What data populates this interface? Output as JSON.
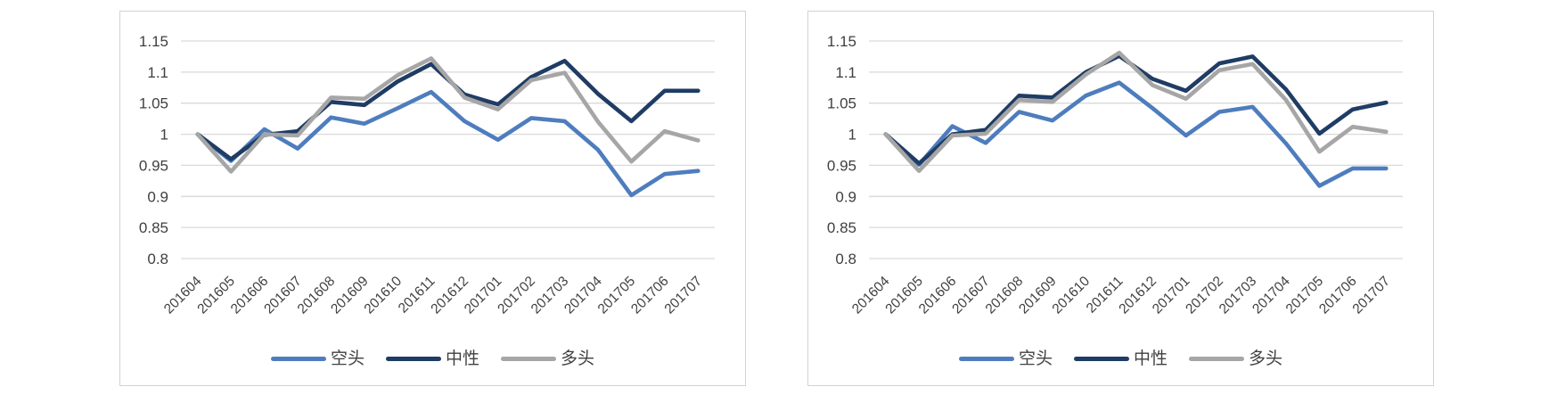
{
  "style": {
    "gridline_color": "#d9d9d9",
    "axis_label_color": "#404040",
    "panel_border_color": "#d2d2d7",
    "series_colors": {
      "short": "#4e7dbe",
      "neutral": "#1f3c64",
      "long": "#a6a6a6"
    }
  },
  "chart_data": [
    {
      "type": "line",
      "title": "",
      "xlabel": "",
      "ylabel": "",
      "grid": "horizontal",
      "legend_position": "bottom",
      "ylim": [
        0.8,
        1.15
      ],
      "yticks": [
        1.15,
        1.1,
        1.05,
        1,
        0.95,
        0.9,
        0.85,
        0.8
      ],
      "ytick_labels": [
        "1.15",
        "1.1",
        "1.05",
        "1",
        "0.95",
        "0.9",
        "0.85",
        "0.8"
      ],
      "categories": [
        "201604",
        "201605",
        "201606",
        "201607",
        "201608",
        "201609",
        "201610",
        "201611",
        "201612",
        "201701",
        "201702",
        "201703",
        "201704",
        "201705",
        "201706",
        "201707"
      ],
      "series": [
        {
          "id": "short",
          "name": "空头",
          "color": "#4e7dbe",
          "values": [
            1.0,
            0.957,
            1.008,
            0.977,
            1.027,
            1.017,
            1.042,
            1.068,
            1.021,
            0.991,
            1.026,
            1.021,
            0.975,
            0.902,
            0.936,
            0.941
          ]
        },
        {
          "id": "neutral",
          "name": "中性",
          "color": "#1f3c64",
          "values": [
            1.0,
            0.96,
            0.999,
            1.005,
            1.052,
            1.047,
            1.085,
            1.113,
            1.064,
            1.048,
            1.092,
            1.118,
            1.065,
            1.021,
            1.07,
            1.07
          ]
        },
        {
          "id": "long",
          "name": "多头",
          "color": "#a6a6a6",
          "values": [
            1.0,
            0.94,
            1.0,
            0.998,
            1.059,
            1.057,
            1.095,
            1.122,
            1.059,
            1.04,
            1.087,
            1.099,
            1.02,
            0.956,
            1.005,
            0.99
          ]
        }
      ]
    },
    {
      "type": "line",
      "title": "",
      "xlabel": "",
      "ylabel": "",
      "grid": "horizontal",
      "legend_position": "bottom",
      "ylim": [
        0.8,
        1.15
      ],
      "yticks": [
        1.15,
        1.1,
        1.05,
        1,
        0.95,
        0.9,
        0.85,
        0.8
      ],
      "ytick_labels": [
        "1.15",
        "1.1",
        "1.05",
        "1",
        "0.95",
        "0.9",
        "0.85",
        "0.8"
      ],
      "categories": [
        "201604",
        "201605",
        "201606",
        "201607",
        "201608",
        "201609",
        "201610",
        "201611",
        "201612",
        "201701",
        "201702",
        "201703",
        "201704",
        "201705",
        "201706",
        "201707"
      ],
      "series": [
        {
          "id": "short",
          "name": "空头",
          "color": "#4e7dbe",
          "values": [
            1.0,
            0.951,
            1.013,
            0.986,
            1.036,
            1.022,
            1.062,
            1.083,
            1.042,
            0.998,
            1.036,
            1.044,
            0.985,
            0.917,
            0.945,
            0.945
          ]
        },
        {
          "id": "neutral",
          "name": "中性",
          "color": "#1f3c64",
          "values": [
            1.0,
            0.953,
            1.0,
            1.007,
            1.062,
            1.059,
            1.1,
            1.126,
            1.089,
            1.07,
            1.114,
            1.125,
            1.072,
            1.001,
            1.04,
            1.051
          ]
        },
        {
          "id": "long",
          "name": "多头",
          "color": "#a6a6a6",
          "values": [
            1.0,
            0.941,
            0.998,
            1.001,
            1.055,
            1.052,
            1.096,
            1.131,
            1.079,
            1.057,
            1.103,
            1.113,
            1.055,
            0.972,
            1.012,
            1.004
          ]
        }
      ]
    }
  ]
}
